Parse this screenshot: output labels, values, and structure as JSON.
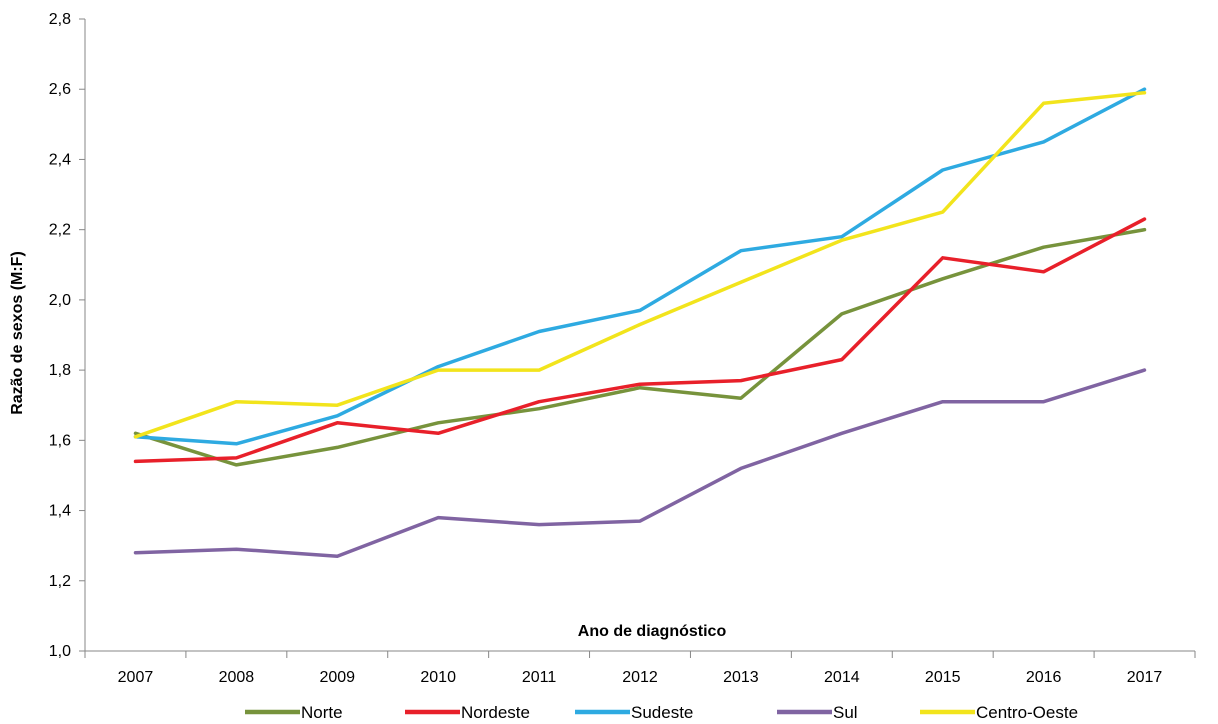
{
  "chart_data": {
    "type": "line",
    "xlabel": "Ano de diagnóstico",
    "ylabel": "Razão de sexos (M:F)",
    "x": [
      "2007",
      "2008",
      "2009",
      "2010",
      "2011",
      "2012",
      "2013",
      "2014",
      "2015",
      "2016",
      "2017"
    ],
    "y_ticks": [
      "1,0",
      "1,2",
      "1,4",
      "1,6",
      "1,8",
      "2,0",
      "2,2",
      "2,4",
      "2,6",
      "2,8"
    ],
    "ylim": [
      1.0,
      2.8
    ],
    "grid": false,
    "legend_position": "bottom",
    "series": [
      {
        "name": "Norte",
        "color": "#77933c",
        "values": [
          1.62,
          1.53,
          1.58,
          1.65,
          1.69,
          1.75,
          1.72,
          1.96,
          2.06,
          2.15,
          2.2
        ]
      },
      {
        "name": "Nordeste",
        "color": "#e8202a",
        "values": [
          1.54,
          1.55,
          1.65,
          1.62,
          1.71,
          1.76,
          1.77,
          1.83,
          2.12,
          2.08,
          2.23
        ]
      },
      {
        "name": "Sudeste",
        "color": "#2eaae1",
        "values": [
          1.61,
          1.59,
          1.67,
          1.81,
          1.91,
          1.97,
          2.14,
          2.18,
          2.37,
          2.45,
          2.6
        ]
      },
      {
        "name": "Sul",
        "color": "#8064a2",
        "values": [
          1.28,
          1.29,
          1.27,
          1.38,
          1.36,
          1.37,
          1.52,
          1.62,
          1.71,
          1.71,
          1.8
        ]
      },
      {
        "name": "Centro-Oeste",
        "color": "#f2e41c",
        "values": [
          1.61,
          1.71,
          1.7,
          1.8,
          1.8,
          1.93,
          2.05,
          2.17,
          2.25,
          2.56,
          2.59
        ]
      }
    ]
  }
}
